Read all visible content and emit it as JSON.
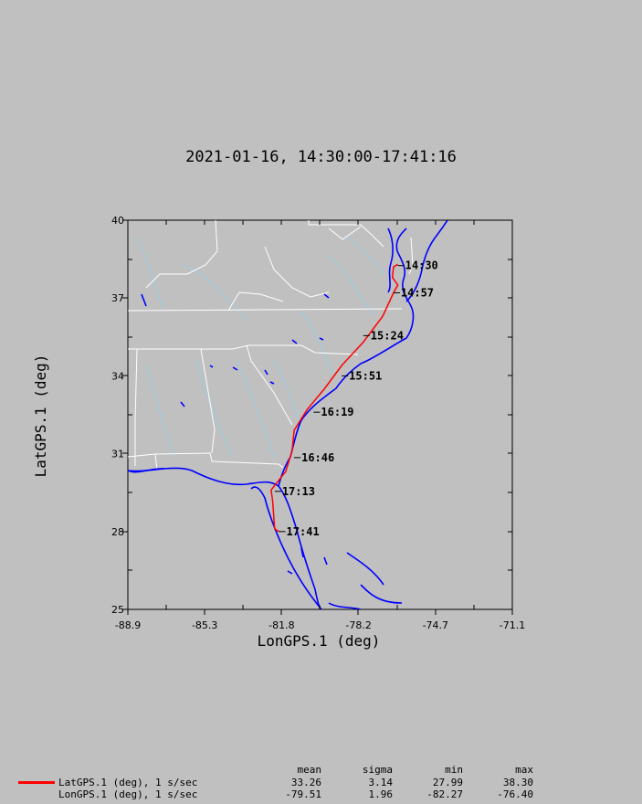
{
  "title": "2021-01-16, 14:30:00-17:41:16",
  "chart_data": {
    "type": "line",
    "title": "2021-01-16, 14:30:00-17:41:16",
    "xlabel": "LonGPS.1 (deg)",
    "ylabel": "LatGPS.1 (deg)",
    "xlim": [
      -88.9,
      -71.1
    ],
    "ylim": [
      25,
      40
    ],
    "x_ticks": [
      "-88.9",
      "-85.3",
      "-81.8",
      "-78.2",
      "-74.7",
      "-71.1"
    ],
    "y_ticks": [
      "25",
      "28",
      "31",
      "34",
      "37",
      "40"
    ],
    "grid": false,
    "map_background": true,
    "series": [
      {
        "name": "LatGPS.1 (deg), 1 s/sec",
        "color": "#ff0000",
        "x": [
          -76.4,
          -76.6,
          -76.65,
          -76.4,
          -76.6,
          -77.1,
          -78.0,
          -79.0,
          -79.8,
          -80.6,
          -81.2,
          -81.3,
          -81.6,
          -81.7,
          -82.27,
          -82.2,
          -82.1,
          -81.9
        ],
        "y": [
          38.3,
          38.2,
          37.8,
          37.5,
          37.2,
          36.3,
          35.3,
          34.4,
          33.5,
          32.7,
          31.9,
          31.1,
          30.3,
          30.2,
          29.6,
          29.2,
          28.1,
          28.0
        ]
      }
    ],
    "time_labels": [
      {
        "label": "14:30",
        "lon": -76.4,
        "lat": 38.25
      },
      {
        "label": "14:57",
        "lon": -76.6,
        "lat": 37.2
      },
      {
        "label": "15:24",
        "lon": -78.0,
        "lat": 35.55
      },
      {
        "label": "15:51",
        "lon": -79.0,
        "lat": 34.0
      },
      {
        "label": "16:19",
        "lon": -80.3,
        "lat": 32.6
      },
      {
        "label": "16:46",
        "lon": -81.2,
        "lat": 30.85
      },
      {
        "label": "17:13",
        "lon": -82.1,
        "lat": 29.55
      },
      {
        "label": "17:41",
        "lon": -81.9,
        "lat": 28.0
      }
    ]
  },
  "stats": {
    "headers": {
      "mean": "mean",
      "sigma": "sigma",
      "min": "min",
      "max": "max"
    },
    "rows": [
      {
        "label": "LatGPS.1 (deg), 1 s/sec",
        "mean": "33.26",
        "sigma": "3.14",
        "min": "27.99",
        "max": "38.30",
        "color": "#ff0000"
      },
      {
        "label": "LonGPS.1 (deg), 1 s/sec",
        "mean": "-79.51",
        "sigma": "1.96",
        "min": "-82.27",
        "max": "-76.40",
        "color": ""
      }
    ]
  },
  "colors": {
    "background": "#c0c0c0",
    "coastline": "#0000ff",
    "borders": "#ffffff",
    "rivers": "#8fd3f0",
    "track": "#ff0000"
  }
}
